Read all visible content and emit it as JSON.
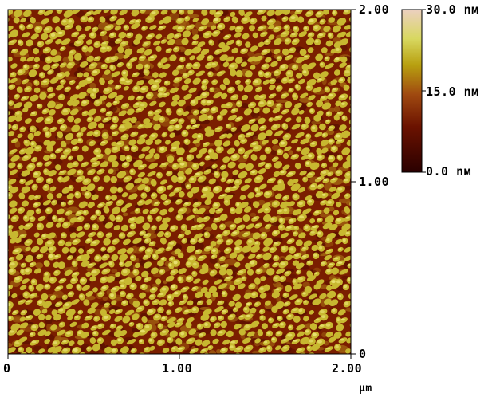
{
  "scan": {
    "x_axis": {
      "unit": "µm",
      "ticks": [
        "0",
        "1.00",
        "2.00"
      ],
      "tick_values": [
        0,
        1,
        2
      ],
      "range": [
        0,
        2
      ]
    },
    "y_axis": {
      "ticks": [
        "0",
        "1.00",
        "2.00"
      ],
      "tick_values": [
        0,
        1,
        2
      ],
      "range": [
        0,
        2
      ]
    }
  },
  "colorbar": {
    "labels": [
      "0.0 nм",
      "15.0 nм",
      "30.0 nм"
    ],
    "values": [
      0,
      15,
      30
    ],
    "unit": "nm",
    "range": [
      0,
      30
    ],
    "colors": [
      "#2a0000",
      "#6b1200",
      "#a04a10",
      "#b8a010",
      "#d8d860",
      "#ecd0c0"
    ]
  },
  "colors": {
    "surface_low": "#7a1e00",
    "surface_mid": "#a06010",
    "grain": "#c8b830",
    "grain_highlight": "#e8e070"
  }
}
